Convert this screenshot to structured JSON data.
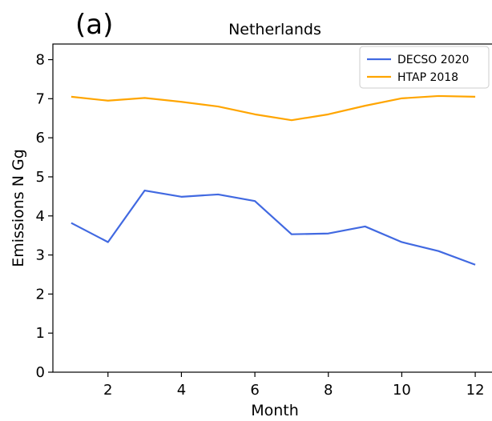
{
  "panel_label": "(a)",
  "chart_data": {
    "type": "line",
    "title": "Netherlands",
    "xlabel": "Month",
    "ylabel": "Emissions N Gg",
    "xlim": [
      0.5,
      12.5
    ],
    "ylim": [
      0,
      8.4
    ],
    "xticks": [
      2,
      4,
      6,
      8,
      10,
      12
    ],
    "yticks": [
      0,
      1,
      2,
      3,
      4,
      5,
      6,
      7,
      8
    ],
    "grid": false,
    "legend_position": "top-right",
    "x": [
      1,
      2,
      3,
      4,
      5,
      6,
      7,
      8,
      9,
      10,
      11,
      12
    ],
    "series": [
      {
        "name": "DECSO 2020",
        "color": "#4169e1",
        "values": [
          3.82,
          3.33,
          4.65,
          4.49,
          4.55,
          4.38,
          3.53,
          3.55,
          3.73,
          3.33,
          3.1,
          2.75
        ]
      },
      {
        "name": "HTAP  2018",
        "color": "#ffa500",
        "values": [
          7.05,
          6.95,
          7.02,
          6.92,
          6.8,
          6.6,
          6.45,
          6.6,
          6.82,
          7.01,
          7.07,
          7.05
        ]
      }
    ]
  }
}
